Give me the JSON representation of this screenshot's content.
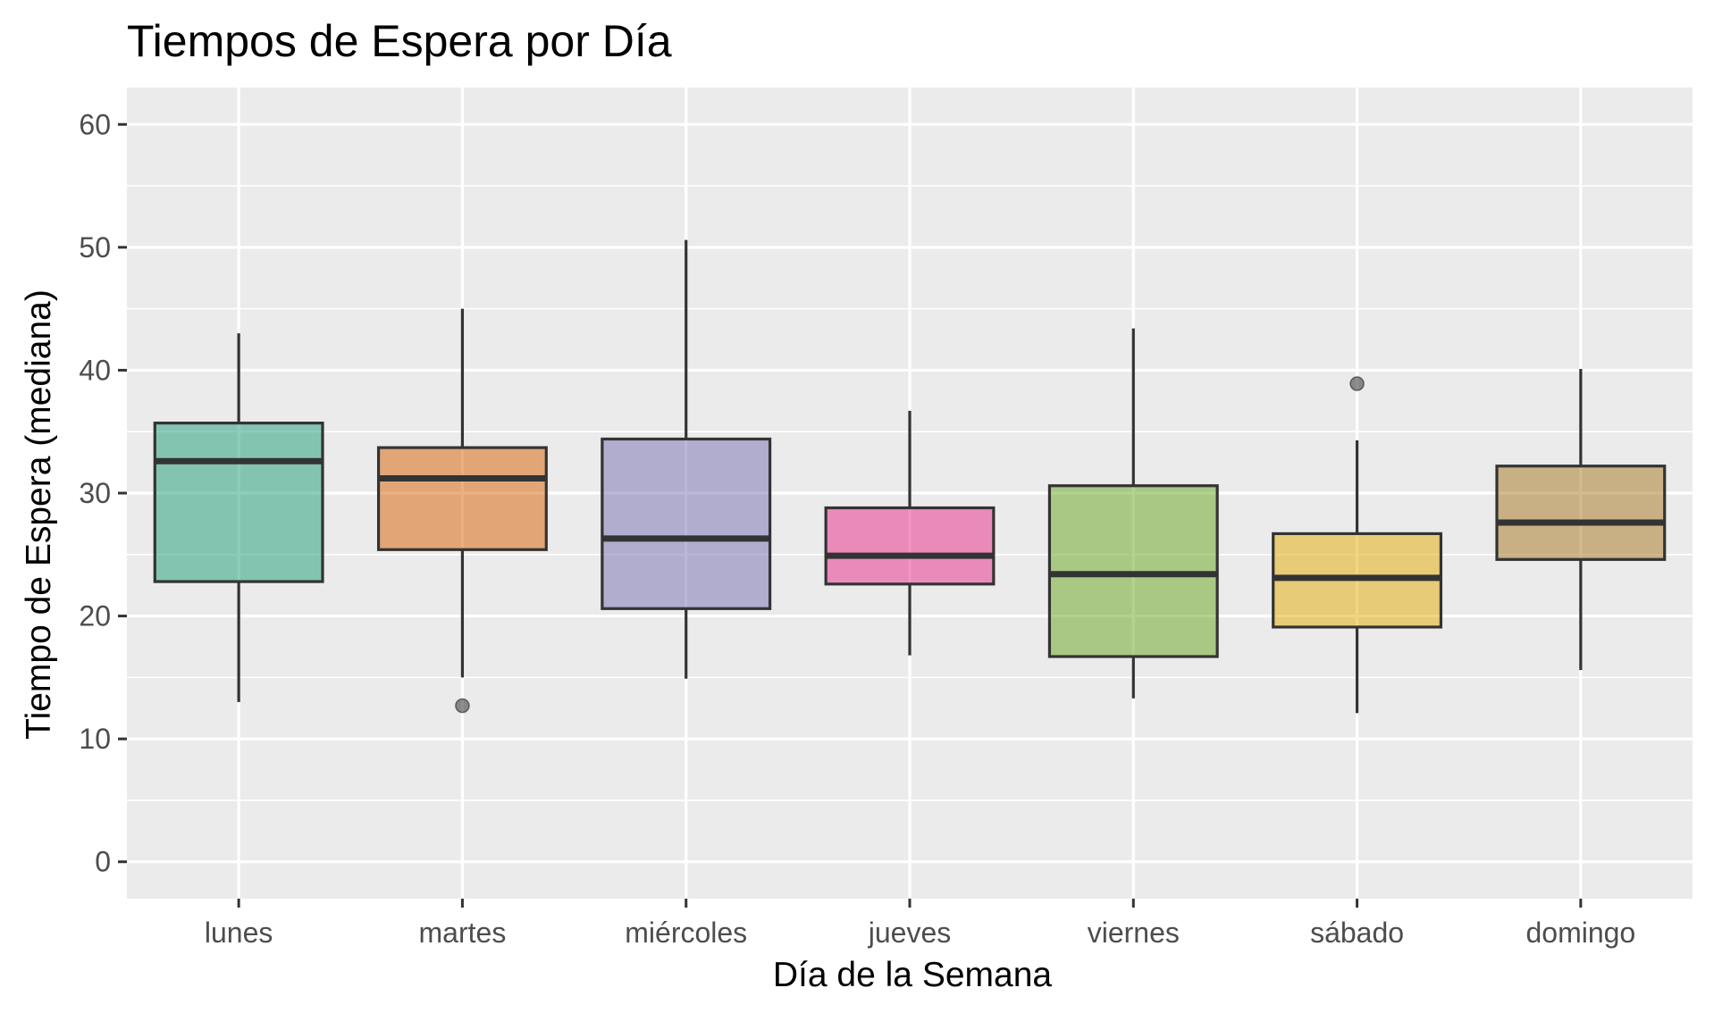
{
  "chart_data": {
    "type": "box",
    "title": "Tiempos de Espera por Día",
    "xlabel": "Día de la Semana",
    "ylabel": "Tiempo de Espera (mediana)",
    "ylim": [
      -3,
      63
    ],
    "yticks": [
      0,
      10,
      20,
      30,
      40,
      50,
      60
    ],
    "grid": true,
    "legend": "none",
    "panel_background": "#ebebeb",
    "grid_color": "#ffffff",
    "categories": [
      "lunes",
      "martes",
      "miércoles",
      "jueves",
      "viernes",
      "sábado",
      "domingo"
    ],
    "boxes": [
      {
        "category": "lunes",
        "whisker_low": 13.0,
        "q1": 22.8,
        "median": 32.6,
        "q3": 35.7,
        "whisker_high": 43.0,
        "outliers": [],
        "color": "#1b9e77"
      },
      {
        "category": "martes",
        "whisker_low": 15.0,
        "q1": 25.4,
        "median": 31.2,
        "q3": 33.7,
        "whisker_high": 45.0,
        "outliers": [
          12.7
        ],
        "color": "#d95f02"
      },
      {
        "category": "miércoles",
        "whisker_low": 14.9,
        "q1": 20.6,
        "median": 26.3,
        "q3": 34.4,
        "whisker_high": 50.6,
        "outliers": [],
        "color": "#7570b3"
      },
      {
        "category": "jueves",
        "whisker_low": 16.8,
        "q1": 22.6,
        "median": 24.9,
        "q3": 28.8,
        "whisker_high": 36.7,
        "outliers": [],
        "color": "#e7298a"
      },
      {
        "category": "viernes",
        "whisker_low": 13.3,
        "q1": 16.7,
        "median": 23.4,
        "q3": 30.6,
        "whisker_high": 43.4,
        "outliers": [],
        "color": "#66a61e"
      },
      {
        "category": "sábado",
        "whisker_low": 12.1,
        "q1": 19.1,
        "median": 23.1,
        "q3": 26.7,
        "whisker_high": 34.3,
        "outliers": [
          38.9
        ],
        "color": "#e6ab02"
      },
      {
        "category": "domingo",
        "whisker_low": 15.6,
        "q1": 24.6,
        "median": 27.6,
        "q3": 32.2,
        "whisker_high": 40.1,
        "outliers": [],
        "color": "#a6761d"
      }
    ]
  }
}
